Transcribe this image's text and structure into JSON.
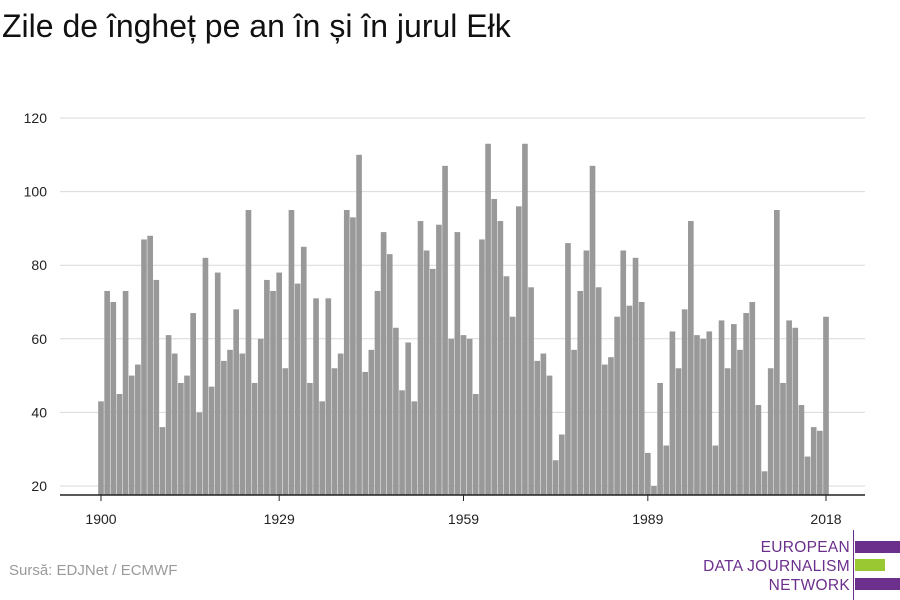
{
  "title": "Zile de îngheț pe an în și în jurul Ełk",
  "source": "Sursă: EDJNet / ECMWF",
  "logo": {
    "lines": [
      "EUROPEAN",
      "DATA JOURNALISM",
      "NETWORK"
    ]
  },
  "colors": {
    "bar": "#999999",
    "grid": "#d9d9d9",
    "logo_purple": "#6b2f8c",
    "logo_green": "#9ac832"
  },
  "chart_data": {
    "type": "bar",
    "title": "Zile de îngheț pe an în și în jurul Ełk",
    "xlabel": "",
    "ylabel": "",
    "x_start": 1900,
    "x_end": 2018,
    "x_ticks": [
      1900,
      1929,
      1959,
      1989,
      2018
    ],
    "y_ticks": [
      20,
      40,
      60,
      80,
      100,
      120
    ],
    "ylim": [
      20,
      120
    ],
    "grid": true,
    "values": [
      43,
      73,
      70,
      45,
      73,
      50,
      53,
      87,
      88,
      76,
      36,
      61,
      56,
      48,
      50,
      67,
      40,
      82,
      47,
      78,
      54,
      57,
      68,
      56,
      95,
      48,
      60,
      76,
      73,
      78,
      52,
      95,
      75,
      85,
      48,
      71,
      43,
      71,
      52,
      56,
      95,
      93,
      110,
      51,
      57,
      73,
      89,
      83,
      63,
      46,
      59,
      43,
      92,
      84,
      79,
      91,
      107,
      60,
      89,
      61,
      60,
      45,
      87,
      113,
      98,
      92,
      77,
      66,
      96,
      113,
      74,
      54,
      56,
      50,
      27,
      34,
      86,
      57,
      73,
      84,
      107,
      74,
      53,
      55,
      66,
      84,
      69,
      82,
      70,
      29,
      20,
      48,
      31,
      62,
      52,
      68,
      92,
      61,
      60,
      62,
      31,
      65,
      52,
      64,
      57,
      67,
      70,
      42,
      24,
      52,
      95,
      48,
      65,
      63,
      42,
      28,
      36,
      35,
      66
    ]
  }
}
